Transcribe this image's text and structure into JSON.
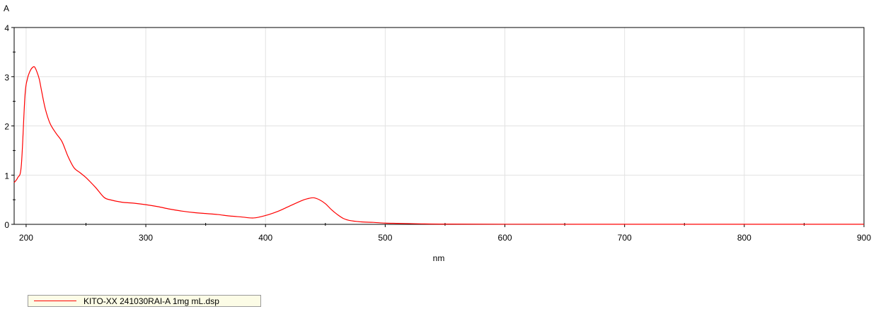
{
  "chart_data": {
    "type": "line",
    "ylabel": "A",
    "xlabel": "nm",
    "xlim": [
      190,
      900
    ],
    "ylim": [
      0,
      4
    ],
    "x_ticks": [
      200,
      300,
      400,
      500,
      600,
      700,
      800,
      900
    ],
    "y_ticks": [
      0,
      1,
      2,
      3,
      4
    ],
    "grid": true,
    "legend_position": "bottom-left",
    "series": [
      {
        "name": "KITO-XX 241030RAI-A 1mg mL.dsp",
        "color": "#ff0000",
        "x": [
          190,
          193,
          196,
          199,
          201,
          203,
          205,
          207,
          209,
          211,
          213,
          216,
          220,
          225,
          230,
          235,
          240,
          245,
          250,
          258,
          265,
          270,
          280,
          290,
          300,
          310,
          320,
          330,
          340,
          350,
          360,
          370,
          380,
          390,
          400,
          410,
          420,
          430,
          435,
          440,
          445,
          450,
          455,
          460,
          465,
          470,
          480,
          490,
          500,
          510,
          520,
          530,
          550,
          600,
          700,
          800,
          900
        ],
        "y": [
          0.85,
          0.95,
          1.2,
          2.6,
          2.95,
          3.1,
          3.18,
          3.2,
          3.1,
          2.95,
          2.7,
          2.35,
          2.05,
          1.85,
          1.68,
          1.38,
          1.15,
          1.05,
          0.95,
          0.75,
          0.55,
          0.5,
          0.45,
          0.43,
          0.4,
          0.36,
          0.31,
          0.27,
          0.24,
          0.22,
          0.2,
          0.17,
          0.15,
          0.13,
          0.18,
          0.26,
          0.37,
          0.48,
          0.52,
          0.54,
          0.5,
          0.42,
          0.3,
          0.2,
          0.12,
          0.08,
          0.05,
          0.04,
          0.025,
          0.02,
          0.015,
          0.01,
          0.005,
          0.003,
          0.002,
          0.002,
          0.002
        ]
      }
    ]
  }
}
